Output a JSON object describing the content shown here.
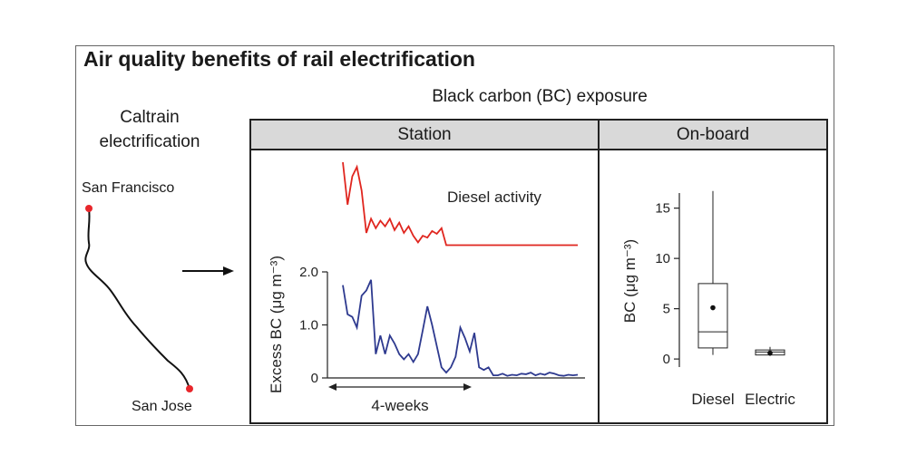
{
  "title": "Air quality benefits of rail electrification",
  "subtitle": "Black carbon (BC) exposure",
  "map": {
    "label_line1": "Caltrain",
    "label_line2": "electrification",
    "north": "San Francisco",
    "south": "San Jose",
    "colors": {
      "route": "#111111",
      "station": "#e8262b"
    }
  },
  "panels": {
    "station": "Station",
    "onboard": "On-board"
  },
  "chart_data": [
    {
      "type": "line",
      "panel": "Station",
      "ylabel": "Excess BC (μg m⁻³)",
      "yticks": [
        "0",
        "1.0",
        "2.0"
      ],
      "ylim": [
        0,
        2.0
      ],
      "annotation_diesel": "Diesel activity",
      "span_label": "4-weeks",
      "series": [
        {
          "role": "diesel-activity",
          "color": "#e0261f",
          "values": [
            1.0,
            0.55,
            0.85,
            0.95,
            0.7,
            0.25,
            0.4,
            0.3,
            0.38,
            0.32,
            0.4,
            0.28,
            0.36,
            0.25,
            0.32,
            0.22,
            0.15,
            0.22,
            0.2,
            0.27,
            0.24,
            0.3,
            0.12,
            0.12,
            0.12,
            0.12,
            0.12,
            0.12,
            0.12,
            0.12,
            0.12,
            0.12,
            0.12,
            0.12,
            0.12,
            0.12,
            0.12,
            0.12,
            0.12,
            0.12,
            0.12,
            0.12,
            0.12,
            0.12,
            0.12,
            0.12,
            0.12,
            0.12,
            0.12,
            0.12,
            0.12
          ]
        },
        {
          "role": "excess-bc",
          "color": "#2e3a8f",
          "values": [
            1.75,
            1.2,
            1.15,
            0.95,
            1.55,
            1.65,
            1.85,
            0.45,
            0.8,
            0.45,
            0.8,
            0.65,
            0.45,
            0.35,
            0.45,
            0.3,
            0.45,
            0.9,
            1.35,
            1.0,
            0.6,
            0.2,
            0.1,
            0.2,
            0.4,
            0.95,
            0.75,
            0.5,
            0.85,
            0.2,
            0.15,
            0.2,
            0.05,
            0.05,
            0.08,
            0.04,
            0.06,
            0.05,
            0.08,
            0.07,
            0.1,
            0.05,
            0.08,
            0.06,
            0.1,
            0.08,
            0.05,
            0.04,
            0.06,
            0.05,
            0.06
          ]
        }
      ]
    },
    {
      "type": "box",
      "panel": "On-board",
      "ylabel": "BC (μg m⁻³)",
      "yticks": [
        "0",
        "5",
        "10",
        "15"
      ],
      "ylim": [
        -0.8,
        16.5
      ],
      "categories": [
        "Diesel",
        "Electric"
      ],
      "boxes": [
        {
          "category": "Diesel",
          "min": 0.4,
          "q1": 1.1,
          "median": 2.7,
          "q3": 7.5,
          "max": 16.7,
          "mean": 5.1
        },
        {
          "category": "Electric",
          "min": 0.3,
          "q1": 0.4,
          "median": 0.7,
          "q3": 0.9,
          "max": 1.2,
          "mean": 0.6
        }
      ]
    }
  ]
}
